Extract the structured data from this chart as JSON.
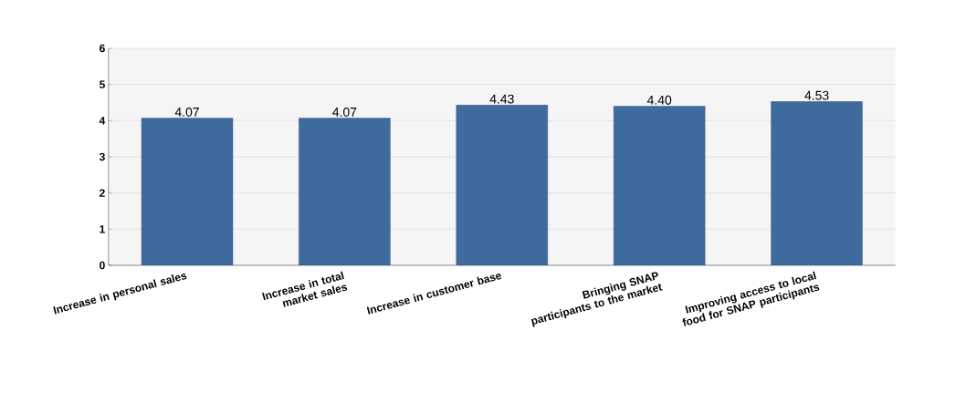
{
  "chart_data": {
    "type": "bar",
    "categories": [
      "Increase in personal sales",
      "Increase in total market sales",
      "Increase in customer base",
      "Bringing SNAP participants to the market",
      "Improving access to local food for SNAP participants"
    ],
    "values": [
      4.07,
      4.07,
      4.43,
      4.4,
      4.53
    ],
    "value_labels": [
      "4.07",
      "4.07",
      "4.43",
      "4.40",
      "4.53"
    ],
    "color": "#3f6a9e",
    "ylim": [
      0,
      6
    ],
    "yticks": [
      0,
      1,
      2,
      3,
      4,
      5,
      6
    ],
    "grid": "y"
  }
}
